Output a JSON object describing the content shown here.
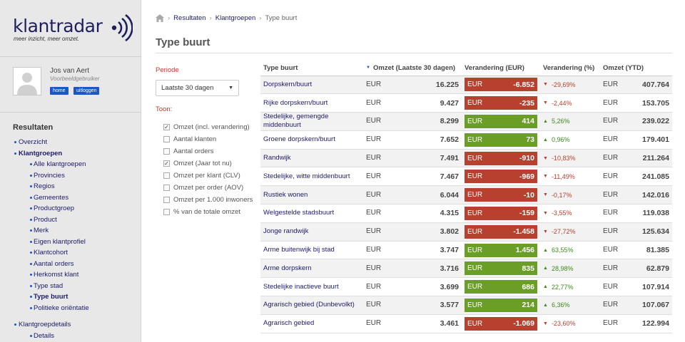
{
  "brand": {
    "name_a": "klant",
    "name_b": "radar",
    "tagline": "meer inzicht, meer omzet."
  },
  "user": {
    "name": "Jos van Aert",
    "role": "Voorbeeldgebruiker",
    "home_label": "home",
    "logout_label": "uitloggen"
  },
  "sidebar": {
    "title": "Resultaten",
    "items": [
      {
        "label": "Overzicht",
        "level": 1
      },
      {
        "label": "Klantgroepen",
        "level": 1,
        "bold": true
      },
      {
        "label": "Alle klantgroepen",
        "level": 2
      },
      {
        "label": "Provincies",
        "level": 2
      },
      {
        "label": "Regios",
        "level": 2
      },
      {
        "label": "Gemeentes",
        "level": 2
      },
      {
        "label": "Productgroep",
        "level": 2
      },
      {
        "label": "Product",
        "level": 2
      },
      {
        "label": "Merk",
        "level": 2
      },
      {
        "label": "Eigen klantprofiel",
        "level": 2
      },
      {
        "label": "Klantcohort",
        "level": 2
      },
      {
        "label": "Aantal orders",
        "level": 2
      },
      {
        "label": "Herkomst klant",
        "level": 2
      },
      {
        "label": "Type stad",
        "level": 2
      },
      {
        "label": "Type buurt",
        "level": 2,
        "bold": true
      },
      {
        "label": "Politieke oriëntatie",
        "level": 2
      },
      {
        "label": "Klantgroepdetails",
        "level": 1
      },
      {
        "label": "Details",
        "level": 2
      }
    ]
  },
  "breadcrumb": {
    "items": [
      "Resultaten",
      "Klantgroepen",
      "Type buurt"
    ]
  },
  "page": {
    "title": "Type buurt"
  },
  "filters": {
    "period_label": "Periode",
    "period_value": "Laatste 30 dagen",
    "show_label": "Toon:",
    "options": [
      {
        "label": "Omzet (incl. verandering)",
        "checked": true
      },
      {
        "label": "Aantal klanten",
        "checked": false
      },
      {
        "label": "Aantal orders",
        "checked": false
      },
      {
        "label": "Omzet (Jaar tot nu)",
        "checked": true
      },
      {
        "label": "Omzet per klant (CLV)",
        "checked": false
      },
      {
        "label": "Omzet per order (AOV)",
        "checked": false
      },
      {
        "label": "Omzet per 1.000 inwoners",
        "checked": false
      },
      {
        "label": "% van de totale omzet",
        "checked": false
      }
    ]
  },
  "table": {
    "currency": "EUR",
    "columns": [
      "Type buurt",
      "Omzet (Laatste 30 dagen)",
      "Verandering (EUR)",
      "Verandering (%)",
      "Omzet (YTD)"
    ],
    "rows": [
      {
        "name": "Dorpskern/buurt",
        "omzet": "16.225",
        "change": "-6.852",
        "pct": "-29,69%",
        "ytd": "407.764",
        "dir": "neg"
      },
      {
        "name": "Rijke dorpskern/buurt",
        "omzet": "9.427",
        "change": "-235",
        "pct": "-2,44%",
        "ytd": "153.705",
        "dir": "neg"
      },
      {
        "name": "Stedelijke, gemengde middenbuurt",
        "omzet": "8.299",
        "change": "414",
        "pct": "5,26%",
        "ytd": "239.022",
        "dir": "pos"
      },
      {
        "name": "Groene dorpskern/buurt",
        "omzet": "7.652",
        "change": "73",
        "pct": "0,96%",
        "ytd": "179.401",
        "dir": "pos"
      },
      {
        "name": "Randwijk",
        "omzet": "7.491",
        "change": "-910",
        "pct": "-10,83%",
        "ytd": "211.264",
        "dir": "neg"
      },
      {
        "name": "Stedelijke, witte middenbuurt",
        "omzet": "7.467",
        "change": "-969",
        "pct": "-11,49%",
        "ytd": "241.085",
        "dir": "neg"
      },
      {
        "name": "Rustiek wonen",
        "omzet": "6.044",
        "change": "-10",
        "pct": "-0,17%",
        "ytd": "142.016",
        "dir": "neg"
      },
      {
        "name": "Welgestelde stadsbuurt",
        "omzet": "4.315",
        "change": "-159",
        "pct": "-3,55%",
        "ytd": "119.038",
        "dir": "neg"
      },
      {
        "name": "Jonge randwijk",
        "omzet": "3.802",
        "change": "-1.458",
        "pct": "-27,72%",
        "ytd": "125.634",
        "dir": "neg"
      },
      {
        "name": "Arme buitenwijk bij stad",
        "omzet": "3.747",
        "change": "1.456",
        "pct": "63,55%",
        "ytd": "81.385",
        "dir": "pos"
      },
      {
        "name": "Arme dorpskern",
        "omzet": "3.716",
        "change": "835",
        "pct": "28,98%",
        "ytd": "62.879",
        "dir": "pos"
      },
      {
        "name": "Stedelijke inactieve buurt",
        "omzet": "3.699",
        "change": "686",
        "pct": "22,77%",
        "ytd": "107.914",
        "dir": "pos"
      },
      {
        "name": "Agrarisch gebied (Dunbevolkt)",
        "omzet": "3.577",
        "change": "214",
        "pct": "6,36%",
        "ytd": "107.067",
        "dir": "pos"
      },
      {
        "name": "Agrarisch gebied",
        "omzet": "3.461",
        "change": "-1.069",
        "pct": "-23,60%",
        "ytd": "122.994",
        "dir": "neg"
      }
    ]
  }
}
